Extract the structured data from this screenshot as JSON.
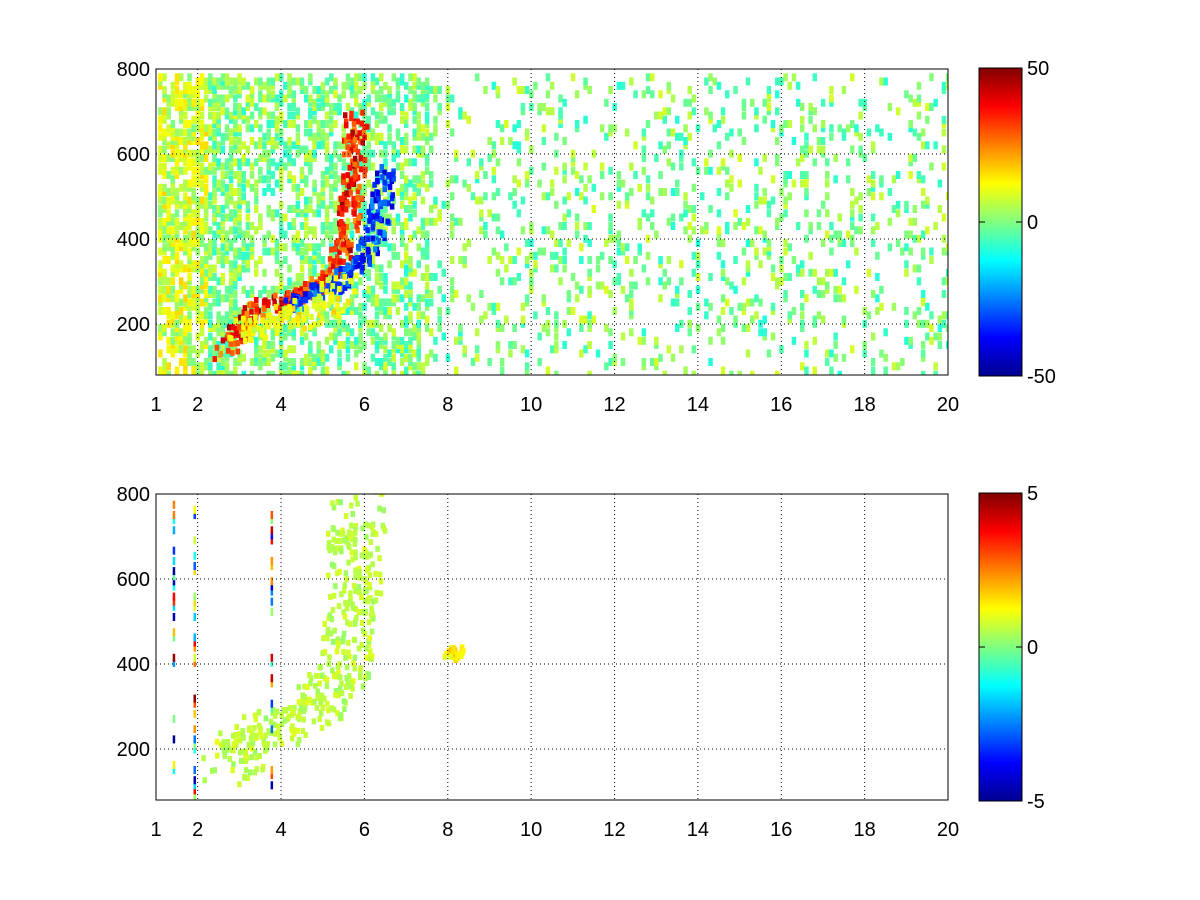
{
  "chart_data": [
    {
      "type": "heatmap",
      "title": "",
      "xlabel": "",
      "ylabel": "",
      "xlim": [
        1,
        20
      ],
      "ylim": [
        80,
        800
      ],
      "x_ticks": [
        1,
        2,
        4,
        6,
        8,
        10,
        12,
        14,
        16,
        18,
        20
      ],
      "y_ticks": [
        200,
        400,
        600,
        800
      ],
      "grid": true,
      "colormap": "jet",
      "colorbar": {
        "min": -50,
        "max": 50,
        "ticks": [
          50,
          0,
          -50
        ]
      },
      "features": [
        {
          "name": "positive ridge",
          "points": [
            [
              2.6,
              140
            ],
            [
              3.0,
              210
            ],
            [
              3.5,
              250
            ],
            [
              4.0,
              265
            ],
            [
              4.5,
              275
            ],
            [
              5.0,
              300
            ],
            [
              5.4,
              360
            ],
            [
              5.6,
              450
            ],
            [
              5.7,
              560
            ],
            [
              5.75,
              700
            ]
          ],
          "value": 45
        },
        {
          "name": "negative ridge",
          "points": [
            [
              4.2,
              255
            ],
            [
              4.8,
              280
            ],
            [
              5.3,
              310
            ],
            [
              5.8,
              350
            ],
            [
              6.2,
              420
            ],
            [
              6.4,
              500
            ],
            [
              6.45,
              570
            ]
          ],
          "value": -40
        },
        {
          "name": "secondary band",
          "points": [
            [
              2.9,
              190
            ],
            [
              3.5,
              205
            ],
            [
              4.0,
              215
            ],
            [
              4.6,
              230
            ],
            [
              5.1,
              260
            ],
            [
              5.5,
              300
            ]
          ],
          "value": 15
        }
      ]
    },
    {
      "type": "heatmap",
      "title": "",
      "xlabel": "",
      "ylabel": "",
      "xlim": [
        1,
        20
      ],
      "ylim": [
        80,
        800
      ],
      "x_ticks": [
        1,
        2,
        4,
        6,
        8,
        10,
        12,
        14,
        16,
        18,
        20
      ],
      "y_ticks": [
        200,
        400,
        600,
        800
      ],
      "grid": true,
      "colormap": "jet",
      "colorbar": {
        "min": -5,
        "max": 5,
        "ticks": [
          5,
          0,
          -5
        ]
      },
      "features": [
        {
          "name": "main curve",
          "points": [
            [
              2.7,
              150
            ],
            [
              3.0,
              210
            ],
            [
              3.5,
              250
            ],
            [
              4.0,
              270
            ],
            [
              4.5,
              285
            ],
            [
              5.0,
              310
            ],
            [
              5.4,
              380
            ],
            [
              5.6,
              470
            ],
            [
              5.7,
              580
            ],
            [
              5.8,
              780
            ]
          ],
          "value": 0.8
        },
        {
          "name": "yellow patch",
          "points": [
            [
              8.0,
              420
            ],
            [
              8.1,
              440
            ],
            [
              8.2,
              430
            ]
          ],
          "value": 1.8
        }
      ]
    }
  ],
  "colors": {
    "background": "#ffffff",
    "axis": "#000000",
    "grid": "#000000"
  }
}
